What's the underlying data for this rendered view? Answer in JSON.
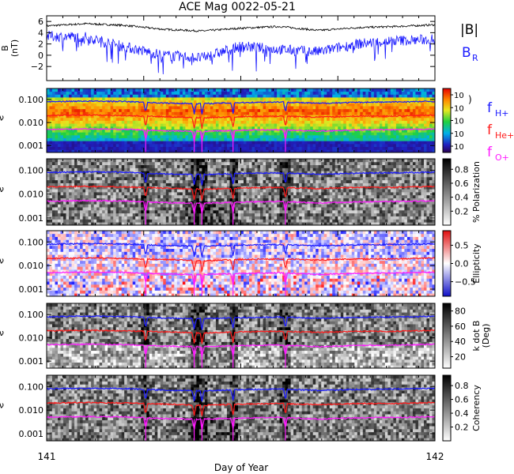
{
  "title": "ACE Mag 0022-05-21",
  "xlabel": "Day of Year",
  "x_ticks": [
    "141",
    "142"
  ],
  "colors": {
    "btotal": "#000000",
    "br": "#1a1aff",
    "fH": "#1a1aff",
    "fHe": "#ff1a1a",
    "fO": "#ff1aff"
  },
  "chart_data": [
    {
      "type": "line",
      "panel": "mag",
      "ylabel": "B\n(nT)",
      "ylim": [
        -4.5,
        7
      ],
      "y_ticks": [
        "6",
        "4",
        "2",
        "0",
        "−2"
      ],
      "y_tick_values": [
        6,
        4,
        2,
        0,
        -2
      ],
      "x": [
        141.0,
        141.1,
        141.2,
        141.3,
        141.4,
        141.5,
        141.6,
        141.7,
        141.8,
        141.9,
        142.0
      ],
      "series": [
        {
          "name": "|B|",
          "color": "#000000",
          "values": [
            5.2,
            5.6,
            5.3,
            4.6,
            4.3,
            4.8,
            5.1,
            4.4,
            4.9,
            5.1,
            5.4
          ]
        },
        {
          "name": "B",
          "subscript": "R",
          "color": "#1a1aff",
          "values": [
            3.4,
            3.2,
            1.5,
            0.0,
            -0.5,
            1.6,
            1.0,
            0.6,
            2.0,
            2.6,
            2.8
          ]
        }
      ]
    },
    {
      "type": "heatmap",
      "panel": "power",
      "ylabel": "ν",
      "colorbar": {
        "scheme": "rainbow",
        "ticks": [
          "10",
          "10",
          "10",
          "10",
          "10"
        ],
        "label": ")"
      },
      "legend": [
        {
          "name": "f",
          "subscript": "H+",
          "color": "#1a1aff"
        },
        {
          "name": "f",
          "subscript": "He+",
          "color": "#ff1a1a"
        },
        {
          "name": "f",
          "subscript": "O+",
          "color": "#ff1aff"
        }
      ]
    },
    {
      "type": "heatmap",
      "panel": "polarization",
      "ylabel": "ν",
      "colorbar": {
        "scheme": "gray",
        "label": "% Polarization",
        "ticks": [
          "0.8",
          "0.6",
          "0.4",
          "0.2"
        ],
        "tick_values": [
          0.8,
          0.6,
          0.4,
          0.2
        ],
        "range": [
          0,
          0.95
        ]
      }
    },
    {
      "type": "heatmap",
      "panel": "ellipticity",
      "ylabel": "ν",
      "colorbar": {
        "scheme": "bwr",
        "label": "Ellipticity",
        "ticks": [
          "0.5",
          "0.0",
          "−0.5"
        ],
        "tick_values": [
          0.5,
          0.0,
          -0.5
        ],
        "range": [
          -0.9,
          0.9
        ]
      }
    },
    {
      "type": "heatmap",
      "panel": "kdotb",
      "ylabel": "ν",
      "colorbar": {
        "scheme": "gray",
        "label": "k dot B\n(Deg)",
        "ticks": [
          "80",
          "60",
          "40",
          "20"
        ],
        "tick_values": [
          80,
          60,
          40,
          20
        ],
        "range": [
          5,
          90
        ]
      }
    },
    {
      "type": "heatmap",
      "panel": "coherency",
      "ylabel": "ν",
      "colorbar": {
        "scheme": "gray",
        "label": "Coherency",
        "ticks": [
          "0.8",
          "0.6",
          "0.4",
          "0.2"
        ],
        "tick_values": [
          0.8,
          0.6,
          0.4,
          0.2
        ],
        "range": [
          0,
          0.95
        ]
      }
    }
  ],
  "freq_axis": {
    "scale": "log",
    "ylim": [
      0.0005,
      0.3
    ],
    "y_ticks": [
      "0.100",
      "0.010",
      "0.001"
    ],
    "y_tick_values": [
      0.1,
      0.01,
      0.001
    ]
  },
  "gyrofrequency_lines": {
    "description": "H+, He+, O+ gyrofrequencies overlaid on every spectral panel",
    "x": [
      141.0,
      141.1,
      141.2,
      141.3,
      141.4,
      141.5,
      141.6,
      141.7,
      141.8,
      141.9,
      142.0
    ],
    "fH": [
      0.08,
      0.085,
      0.082,
      0.07,
      0.066,
      0.073,
      0.078,
      0.068,
      0.075,
      0.078,
      0.083
    ],
    "fHe": [
      0.02,
      0.021,
      0.02,
      0.018,
      0.016,
      0.018,
      0.019,
      0.017,
      0.019,
      0.019,
      0.021
    ],
    "fO": [
      0.005,
      0.0053,
      0.0051,
      0.0044,
      0.0041,
      0.0046,
      0.0049,
      0.0042,
      0.0047,
      0.0049,
      0.0052
    ],
    "dips_doy": [
      141.255,
      141.38,
      141.4,
      141.48,
      141.615
    ]
  }
}
